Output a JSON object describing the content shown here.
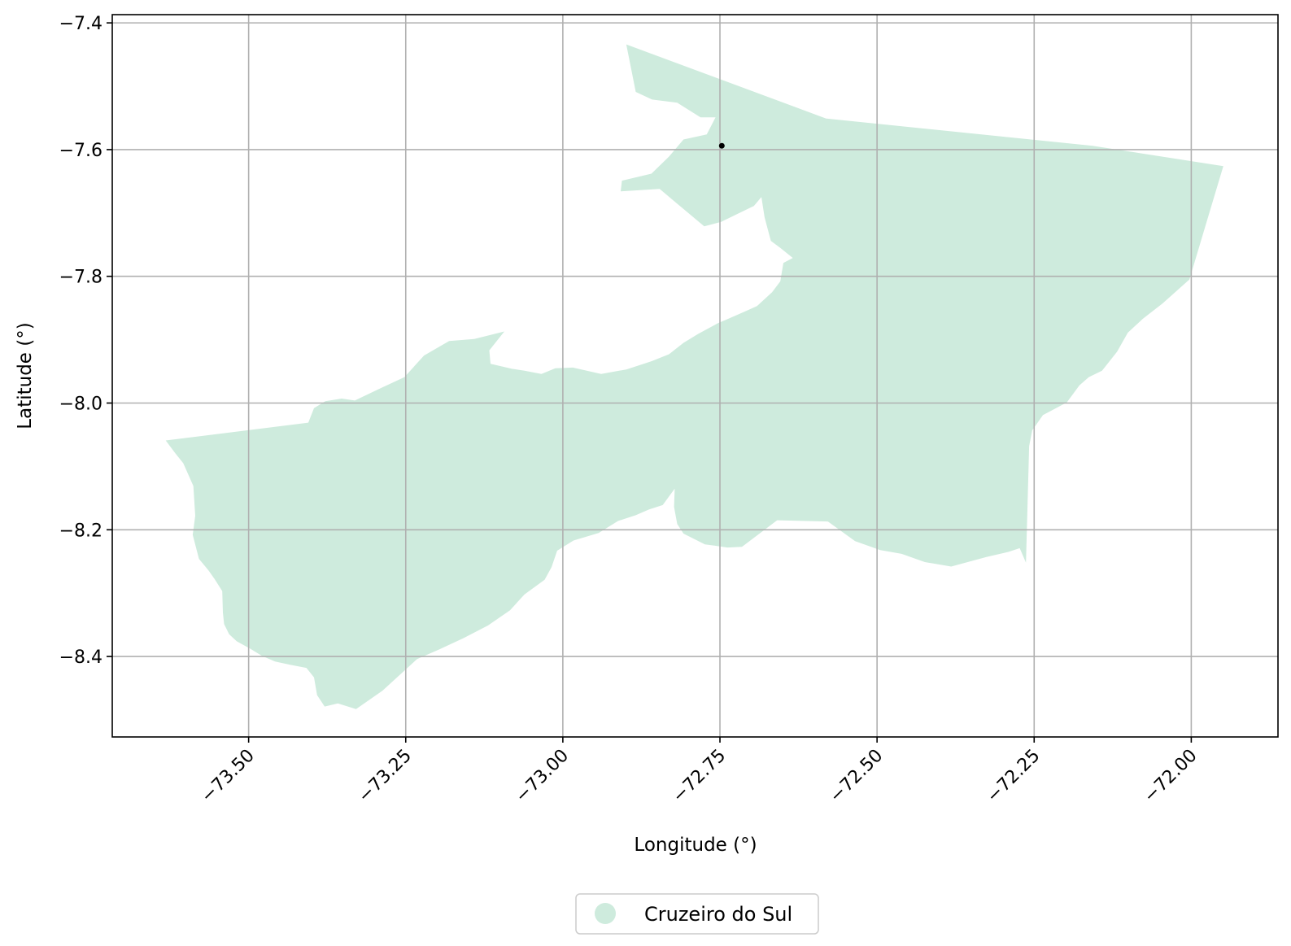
{
  "chart_data": {
    "type": "map",
    "xlabel": "Longitude (°)",
    "ylabel": "Latitude (°)",
    "xlim": [
      -73.717,
      -71.862
    ],
    "ylim": [
      -8.527,
      -7.387
    ],
    "grid": true,
    "x_ticks": [
      -73.5,
      -73.25,
      -73.0,
      -72.75,
      -72.5,
      -72.25,
      -72.0
    ],
    "x_tick_labels": [
      "−73.50",
      "−73.25",
      "−73.00",
      "−72.75",
      "−72.50",
      "−72.25",
      "−72.00"
    ],
    "y_ticks": [
      -7.4,
      -7.6,
      -7.8,
      -8.0,
      -8.2,
      -8.4
    ],
    "y_tick_labels": [
      "−7.4",
      "−7.6",
      "−7.8",
      "−8.0",
      "−8.2",
      "−8.4"
    ],
    "legend": {
      "placement": "bottom-center",
      "entries": [
        "Cruzeiro do Sul"
      ]
    },
    "region": {
      "name": "Cruzeiro do Sul",
      "fill_color": "#ceebdd",
      "outline": [
        [
          -72.899,
          -7.434
        ],
        [
          -72.581,
          -7.551
        ],
        [
          -72.157,
          -7.594
        ],
        [
          -71.949,
          -7.626
        ],
        [
          -72.003,
          -7.805
        ],
        [
          -72.046,
          -7.843
        ],
        [
          -72.077,
          -7.867
        ],
        [
          -72.101,
          -7.889
        ],
        [
          -72.118,
          -7.919
        ],
        [
          -72.142,
          -7.949
        ],
        [
          -72.163,
          -7.959
        ],
        [
          -72.178,
          -7.972
        ],
        [
          -72.198,
          -7.999
        ],
        [
          -72.236,
          -8.019
        ],
        [
          -72.253,
          -8.043
        ],
        [
          -72.258,
          -8.068
        ],
        [
          -72.263,
          -8.252
        ],
        [
          -72.273,
          -8.229
        ],
        [
          -72.291,
          -8.235
        ],
        [
          -72.326,
          -8.243
        ],
        [
          -72.382,
          -8.258
        ],
        [
          -72.424,
          -8.251
        ],
        [
          -72.461,
          -8.238
        ],
        [
          -72.495,
          -8.232
        ],
        [
          -72.535,
          -8.218
        ],
        [
          -72.578,
          -8.187
        ],
        [
          -72.659,
          -8.185
        ],
        [
          -72.715,
          -8.227
        ],
        [
          -72.738,
          -8.228
        ],
        [
          -72.759,
          -8.225
        ],
        [
          -72.774,
          -8.223
        ],
        [
          -72.808,
          -8.206
        ],
        [
          -72.818,
          -8.191
        ],
        [
          -72.823,
          -8.164
        ],
        [
          -72.822,
          -8.135
        ],
        [
          -72.841,
          -8.161
        ],
        [
          -72.863,
          -8.168
        ],
        [
          -72.884,
          -8.177
        ],
        [
          -72.912,
          -8.186
        ],
        [
          -72.943,
          -8.205
        ],
        [
          -72.983,
          -8.217
        ],
        [
          -73.009,
          -8.233
        ],
        [
          -73.018,
          -8.259
        ],
        [
          -73.029,
          -8.279
        ],
        [
          -73.061,
          -8.302
        ],
        [
          -73.084,
          -8.327
        ],
        [
          -73.119,
          -8.351
        ],
        [
          -73.158,
          -8.371
        ],
        [
          -73.197,
          -8.389
        ],
        [
          -73.232,
          -8.404
        ],
        [
          -73.287,
          -8.454
        ],
        [
          -73.329,
          -8.483
        ],
        [
          -73.358,
          -8.474
        ],
        [
          -73.379,
          -8.479
        ],
        [
          -73.391,
          -8.461
        ],
        [
          -73.396,
          -8.433
        ],
        [
          -73.408,
          -8.418
        ],
        [
          -73.434,
          -8.413
        ],
        [
          -73.458,
          -8.408
        ],
        [
          -73.479,
          -8.399
        ],
        [
          -73.497,
          -8.388
        ],
        [
          -73.519,
          -8.376
        ],
        [
          -73.531,
          -8.365
        ],
        [
          -73.539,
          -8.349
        ],
        [
          -73.541,
          -8.331
        ],
        [
          -73.542,
          -8.297
        ],
        [
          -73.554,
          -8.278
        ],
        [
          -73.564,
          -8.264
        ],
        [
          -73.579,
          -8.246
        ],
        [
          -73.589,
          -8.208
        ],
        [
          -73.585,
          -8.178
        ],
        [
          -73.588,
          -8.131
        ],
        [
          -73.604,
          -8.095
        ],
        [
          -73.617,
          -8.079
        ],
        [
          -73.632,
          -8.059
        ],
        [
          -73.405,
          -8.031
        ],
        [
          -73.396,
          -8.008
        ],
        [
          -73.378,
          -7.997
        ],
        [
          -73.352,
          -7.993
        ],
        [
          -73.331,
          -7.996
        ],
        [
          -73.291,
          -7.977
        ],
        [
          -73.252,
          -7.959
        ],
        [
          -73.221,
          -7.925
        ],
        [
          -73.181,
          -7.902
        ],
        [
          -73.141,
          -7.899
        ],
        [
          -73.093,
          -7.887
        ],
        [
          -73.117,
          -7.917
        ],
        [
          -73.115,
          -7.938
        ],
        [
          -73.081,
          -7.946
        ],
        [
          -73.061,
          -7.949
        ],
        [
          -73.034,
          -7.954
        ],
        [
          -73.012,
          -7.945
        ],
        [
          -72.984,
          -7.944
        ],
        [
          -72.939,
          -7.954
        ],
        [
          -72.899,
          -7.947
        ],
        [
          -72.859,
          -7.934
        ],
        [
          -72.831,
          -7.923
        ],
        [
          -72.808,
          -7.905
        ],
        [
          -72.785,
          -7.891
        ],
        [
          -72.753,
          -7.874
        ],
        [
          -72.716,
          -7.858
        ],
        [
          -72.691,
          -7.847
        ],
        [
          -72.667,
          -7.825
        ],
        [
          -72.654,
          -7.808
        ],
        [
          -72.649,
          -7.779
        ],
        [
          -72.634,
          -7.771
        ],
        [
          -72.654,
          -7.755
        ],
        [
          -72.669,
          -7.744
        ],
        [
          -72.679,
          -7.707
        ],
        [
          -72.684,
          -7.675
        ],
        [
          -72.696,
          -7.689
        ],
        [
          -72.748,
          -7.714
        ],
        [
          -72.775,
          -7.721
        ],
        [
          -72.816,
          -7.687
        ],
        [
          -72.846,
          -7.662
        ],
        [
          -72.908,
          -7.666
        ],
        [
          -72.906,
          -7.649
        ],
        [
          -72.859,
          -7.638
        ],
        [
          -72.831,
          -7.611
        ],
        [
          -72.808,
          -7.584
        ],
        [
          -72.771,
          -7.576
        ],
        [
          -72.757,
          -7.549
        ],
        [
          -72.781,
          -7.549
        ],
        [
          -72.818,
          -7.526
        ],
        [
          -72.858,
          -7.521
        ],
        [
          -72.884,
          -7.509
        ],
        [
          -72.899,
          -7.434
        ]
      ],
      "marker": {
        "lon": -72.747,
        "lat": -7.594,
        "color": "#000000"
      }
    }
  }
}
